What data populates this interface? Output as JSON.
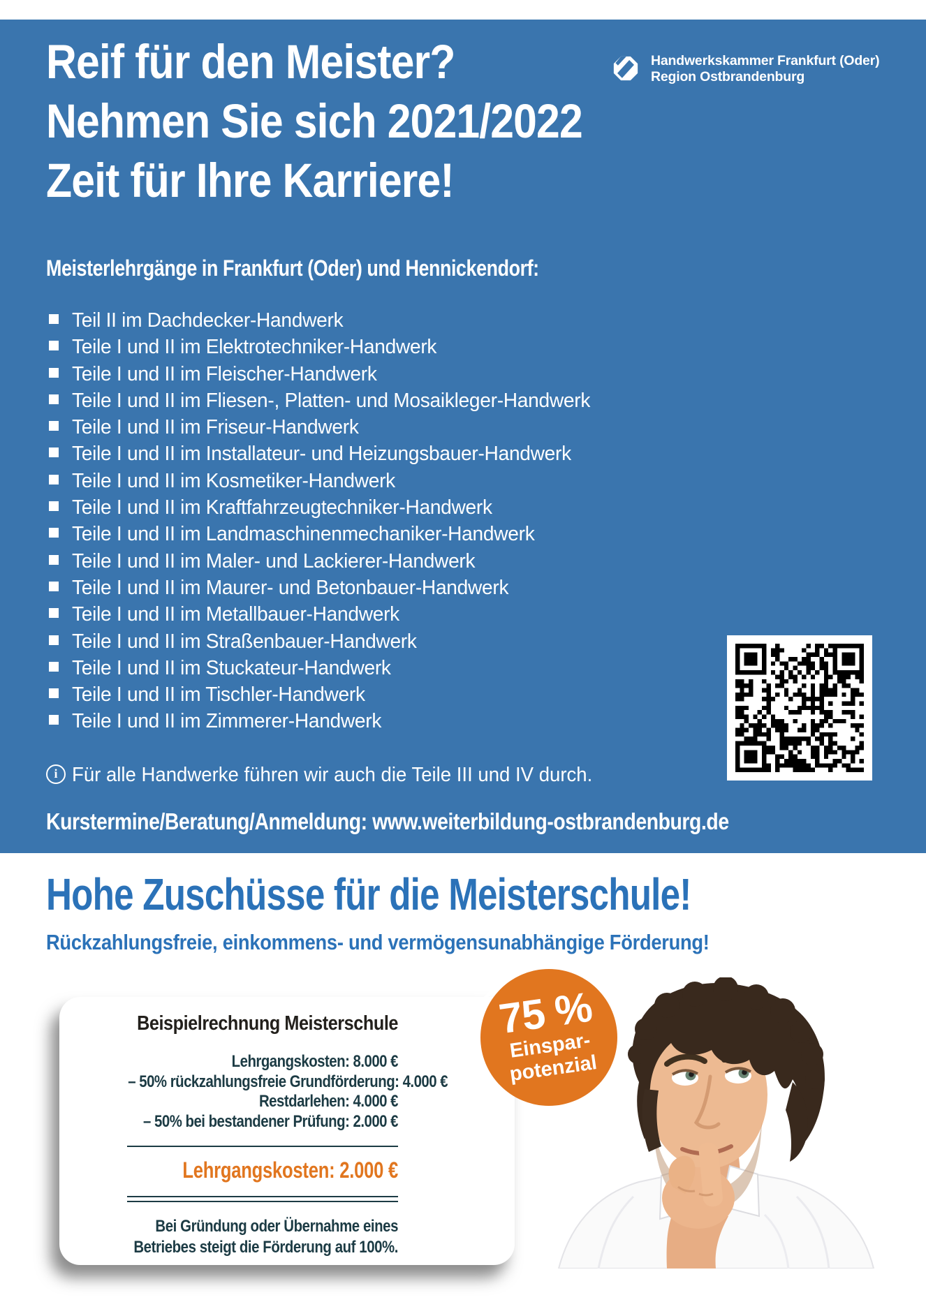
{
  "colors": {
    "background_blue": "#3a75ae",
    "accent_blue": "#2b72b8",
    "orange": "#e1761f",
    "dark_teal": "#1c3b44",
    "card_title_dark": "#23201c",
    "white": "#ffffff"
  },
  "header": {
    "headline_line1": "Reif für den Meister?",
    "headline_line2": "Nehmen Sie sich 2021/2022",
    "headline_line3": "Zeit für Ihre Karriere!",
    "logo_line1": "Handwerkskammer Frankfurt (Oder)",
    "logo_line2": "Region Ostbrandenburg"
  },
  "courses": {
    "heading": "Meisterlehrgänge in Frankfurt (Oder) und Hennickendorf:",
    "items": [
      "Teil II im Dachdecker-Handwerk",
      "Teile I und II im Elektrotechniker-Handwerk",
      "Teile I und II im Fleischer-Handwerk",
      "Teile I und II im Fliesen-, Platten- und Mosaikleger-Handwerk",
      "Teile I und II im Friseur-Handwerk",
      "Teile I und II im Installateur- und Heizungsbauer-Handwerk",
      "Teile I und II im Kosmetiker-Handwerk",
      "Teile I und II im Kraftfahrzeugtechniker-Handwerk",
      "Teile I und II im Landmaschinenmechaniker-Handwerk",
      "Teile I und II im Maler- und Lackierer-Handwerk",
      "Teile I und II im Maurer- und Betonbauer-Handwerk",
      "Teile I und II im Metallbauer-Handwerk",
      "Teile I und II im Straßenbauer-Handwerk",
      "Teile I und II im Stuckateur-Handwerk",
      "Teile I und II im Tischler-Handwerk",
      "Teile I und II im Zimmerer-Handwerk"
    ],
    "info_icon": "i",
    "note": "Für alle Handwerke führen wir auch die Teile III und IV durch.",
    "contact": "Kurstermine/Beratung/Anmeldung: www.weiterbildung-ostbrandenburg.de"
  },
  "funding": {
    "title": "Hohe Zuschüsse für die Meisterschule!",
    "subtitle": "Rückzahlungsfreie, einkommens- und vermögensunabhängige Förderung!",
    "badge": {
      "percent": "75 %",
      "line1": "Einspar-",
      "line2": "potenzial"
    },
    "card": {
      "title": "Beispielrechnung Meisterschule",
      "calc_lines": [
        "Lehrgangskosten: 8.000 €",
        "– 50% rückzahlungsfreie Grundförderung: 4.000 €",
        "Restdarlehen: 4.000 €",
        "– 50% bei bestandener Prüfung: 2.000 €"
      ],
      "total": "Lehrgangskosten: 2.000 €",
      "footnote_line1": "Bei Gründung oder Übernahme eines",
      "footnote_line2": "Betriebes steigt die Förderung auf 100%."
    }
  }
}
